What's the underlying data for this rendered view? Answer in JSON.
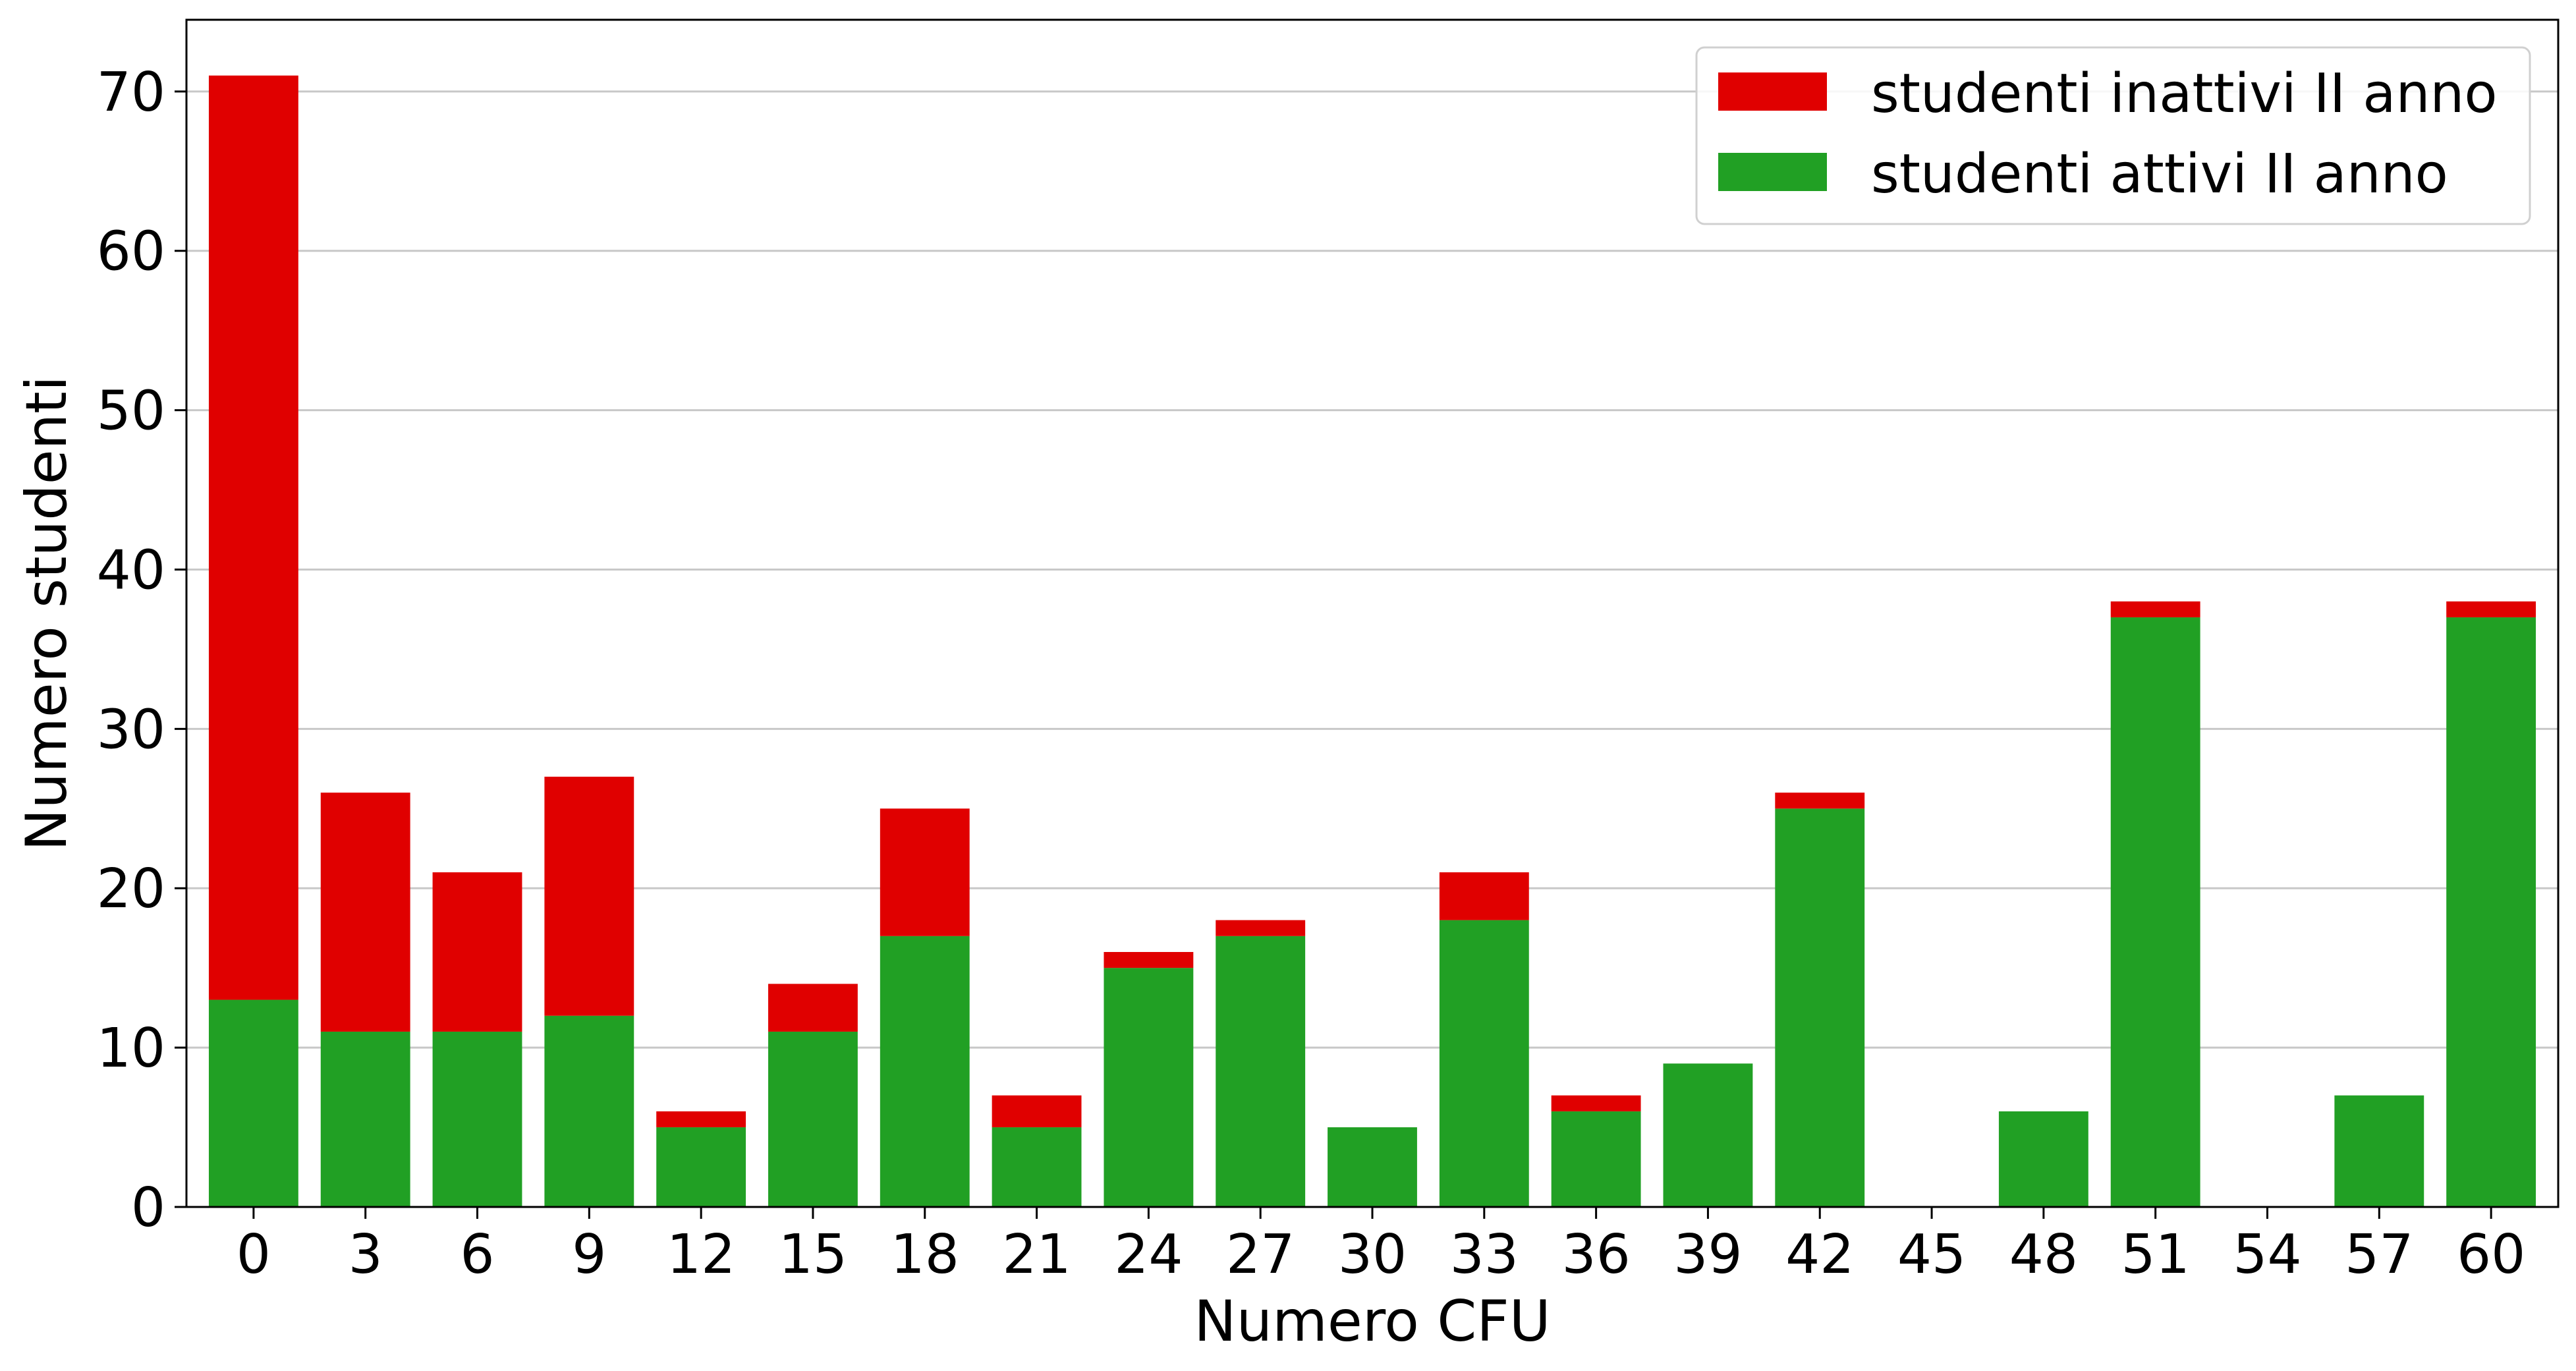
{
  "chart_data": {
    "type": "bar",
    "stacked": true,
    "title": "",
    "xlabel": "Numero CFU",
    "ylabel": "Numero studenti",
    "categories": [
      "0",
      "3",
      "6",
      "9",
      "12",
      "15",
      "18",
      "21",
      "24",
      "27",
      "30",
      "33",
      "36",
      "39",
      "42",
      "45",
      "48",
      "51",
      "54",
      "57",
      "60"
    ],
    "ylim": [
      0,
      74.5
    ],
    "yticks": [
      0,
      10,
      20,
      30,
      40,
      50,
      60,
      70
    ],
    "grid": "horizontal",
    "legend_position": "top-right",
    "series": [
      {
        "name": "studenti attivi II anno",
        "color": "#21a024",
        "values": [
          13,
          11,
          11,
          12,
          5,
          11,
          17,
          5,
          15,
          17,
          5,
          18,
          6,
          9,
          25,
          0,
          6,
          37,
          0,
          7,
          37
        ]
      },
      {
        "name": "studenti inattivi II anno",
        "color": "#e00000",
        "values": [
          58,
          15,
          10,
          15,
          1,
          3,
          8,
          2,
          1,
          1,
          0,
          3,
          1,
          0,
          1,
          0,
          0,
          1,
          0,
          0,
          1
        ]
      }
    ],
    "legend_order": [
      1,
      0
    ]
  }
}
